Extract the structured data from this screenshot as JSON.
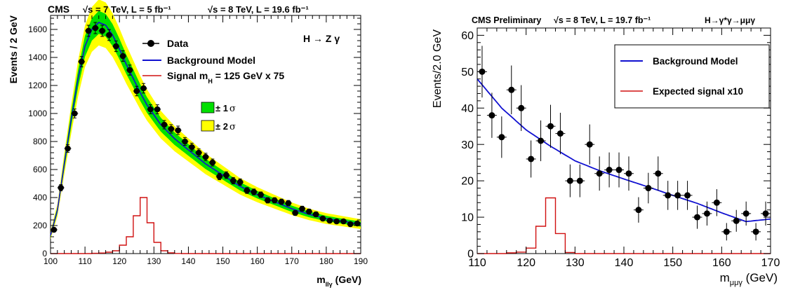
{
  "chart_data": [
    {
      "type": "scatter",
      "header": {
        "experiment": "CMS",
        "lumi1": "√s = 7 TeV, L = 5 fb⁻¹",
        "lumi2": "√s = 8 TeV, L = 19.6 fb⁻¹"
      },
      "channel": "H → Z γ",
      "xlabel": {
        "main": "m",
        "sub": "llγ",
        "unit": "(GeV)"
      },
      "ylabel": "Events / 2 GeV",
      "xlim": [
        100,
        190
      ],
      "ylim": [
        0,
        1700
      ],
      "xticks": [
        100,
        110,
        120,
        130,
        140,
        150,
        160,
        170,
        180,
        190
      ],
      "yticks": [
        0,
        200,
        400,
        600,
        800,
        1000,
        1200,
        1400,
        1600
      ],
      "legend": {
        "data": "Data",
        "background": "Background Model",
        "signal": {
          "main": "Signal m",
          "sub": "H",
          "rest": " = 125 GeV x 75"
        },
        "band1": "± 1",
        "band2": "± 2",
        "sigma": "σ"
      },
      "colors": {
        "background": "#1010d0",
        "signal": "#d01010",
        "band1": "#00e000",
        "band2": "#ffff00"
      },
      "data_points": {
        "x": [
          101,
          103,
          105,
          107,
          109,
          111,
          113,
          115,
          117,
          119,
          121,
          123,
          125,
          127,
          129,
          131,
          133,
          135,
          137,
          139,
          141,
          143,
          145,
          147,
          149,
          151,
          153,
          155,
          157,
          159,
          161,
          163,
          165,
          167,
          169,
          171,
          173,
          175,
          177,
          179,
          181,
          183,
          185,
          187,
          189
        ],
        "y": [
          170,
          470,
          750,
          1000,
          1370,
          1590,
          1610,
          1590,
          1560,
          1480,
          1410,
          1310,
          1160,
          1180,
          1030,
          1030,
          920,
          890,
          880,
          800,
          760,
          720,
          690,
          650,
          550,
          560,
          520,
          510,
          450,
          440,
          420,
          380,
          380,
          370,
          360,
          290,
          320,
          300,
          280,
          250,
          235,
          230,
          230,
          210,
          215
        ],
        "err": [
          13,
          22,
          27,
          32,
          37,
          40,
          40,
          40,
          39,
          38,
          38,
          36,
          34,
          34,
          32,
          32,
          30,
          30,
          30,
          28,
          28,
          27,
          26,
          25,
          23,
          24,
          23,
          23,
          21,
          21,
          20,
          19,
          19,
          19,
          19,
          17,
          18,
          17,
          17,
          16,
          15,
          15,
          15,
          14,
          15
        ]
      },
      "background_curve": {
        "x": [
          100,
          102,
          104,
          106,
          108,
          110,
          112,
          114,
          116,
          118,
          120,
          122,
          124,
          126,
          128,
          130,
          132,
          134,
          136,
          138,
          140,
          145,
          150,
          155,
          160,
          165,
          170,
          175,
          180,
          185,
          190
        ],
        "y": [
          130,
          310,
          640,
          960,
          1250,
          1480,
          1600,
          1650,
          1630,
          1560,
          1460,
          1350,
          1250,
          1150,
          1060,
          990,
          920,
          870,
          820,
          780,
          740,
          640,
          560,
          480,
          420,
          370,
          320,
          280,
          250,
          230,
          210
        ]
      },
      "signal_hist": {
        "edges": [
          100,
          102,
          104,
          106,
          108,
          110,
          112,
          114,
          116,
          118,
          120,
          122,
          124,
          126,
          128,
          130,
          132,
          134,
          136,
          138,
          140,
          190
        ],
        "values": [
          0,
          0,
          0,
          0,
          0,
          0,
          2,
          4,
          10,
          20,
          60,
          120,
          270,
          400,
          220,
          80,
          20,
          5,
          1,
          0,
          0
        ]
      }
    },
    {
      "type": "scatter",
      "header": {
        "label": "CMS Preliminary",
        "lumi": "√s = 8 TeV, L = 19.7 fb⁻¹",
        "process": "H→γ*γ→μμγ"
      },
      "xlabel": {
        "main": "m",
        "sub": "μμγ",
        "unit": " (GeV)"
      },
      "ylabel": "Events/2.0 GeV",
      "xlim": [
        110,
        170
      ],
      "ylim": [
        0,
        62
      ],
      "xticks": [
        110,
        120,
        130,
        140,
        150,
        160,
        170
      ],
      "yticks": [
        0,
        10,
        20,
        30,
        40,
        50,
        60
      ],
      "legend": {
        "background": "Background Model",
        "signal": "Expected signal x10"
      },
      "colors": {
        "background": "#1010d0",
        "signal": "#d01010"
      },
      "data_points": {
        "x": [
          111,
          113,
          115,
          117,
          119,
          121,
          123,
          125,
          127,
          129,
          131,
          133,
          135,
          137,
          139,
          141,
          143,
          145,
          147,
          149,
          151,
          153,
          155,
          157,
          159,
          161,
          163,
          165,
          167,
          169
        ],
        "y": [
          50,
          38,
          32,
          45,
          40,
          26,
          31,
          35,
          33,
          20,
          20,
          30,
          22,
          23,
          23,
          22,
          12,
          18,
          22,
          16,
          16,
          16,
          10,
          11,
          14,
          6,
          9,
          11,
          6,
          11
        ],
        "err": [
          7.1,
          6.2,
          5.7,
          6.7,
          6.3,
          5.1,
          5.6,
          5.9,
          5.7,
          4.5,
          4.5,
          5.5,
          4.7,
          4.8,
          4.8,
          4.7,
          3.5,
          4.2,
          4.7,
          4.0,
          4.0,
          4.0,
          3.2,
          3.3,
          3.7,
          2.4,
          3.0,
          3.3,
          2.4,
          3.3
        ]
      },
      "background_curve": {
        "x": [
          110,
          115,
          120,
          125,
          130,
          135,
          140,
          145,
          150,
          155,
          160,
          165,
          170
        ],
        "y": [
          48,
          40,
          34,
          29.5,
          25.5,
          22.8,
          20.5,
          18.3,
          16,
          13.8,
          11.2,
          8.8,
          9.5
        ]
      },
      "signal_hist": {
        "edges": [
          110,
          112,
          114,
          116,
          118,
          120,
          122,
          124,
          126,
          128,
          130,
          170
        ],
        "values": [
          0,
          0,
          0,
          0.2,
          0.4,
          1.5,
          7.5,
          15.3,
          5.5,
          0.3,
          0
        ]
      }
    }
  ]
}
